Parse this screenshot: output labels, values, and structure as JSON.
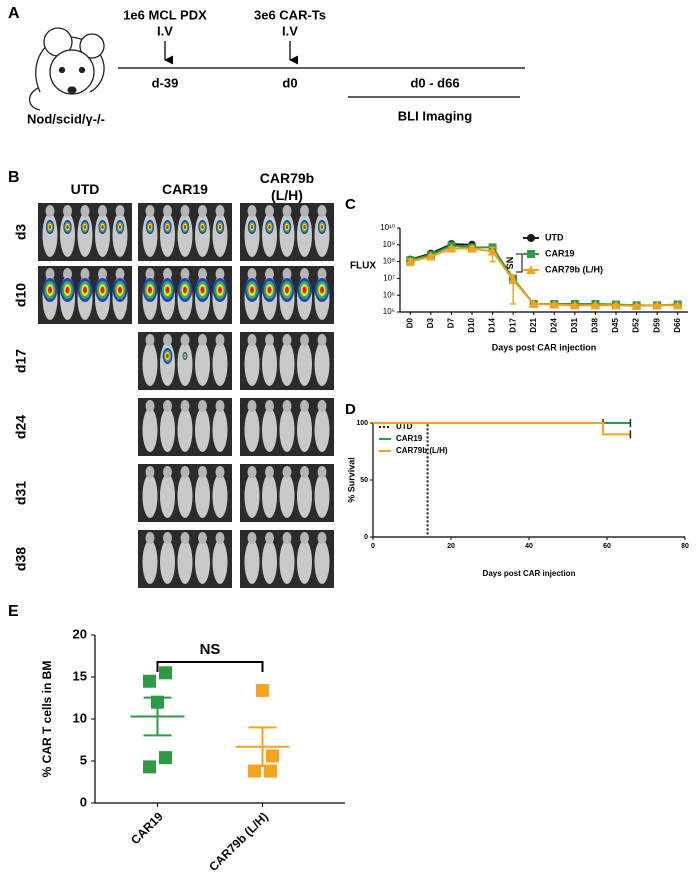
{
  "panel_a": {
    "label": "A",
    "strain": "Nod/scid/γ-/-",
    "events": [
      {
        "top": "1e6 MCL PDX",
        "route": "I.V",
        "day": "d-39"
      },
      {
        "top": "3e6 CAR-Ts",
        "route": "I.V",
        "day": "d0"
      }
    ],
    "imaging": {
      "range": "d0 - d66",
      "label": "BLI Imaging"
    }
  },
  "panel_b": {
    "label": "B",
    "columns": [
      "UTD",
      "CAR19",
      "CAR79b (L/H)"
    ],
    "rows": [
      "d3",
      "d10",
      "d17",
      "d24",
      "d31",
      "d38"
    ]
  },
  "chart_data": [
    {
      "type": "line",
      "panel": "C",
      "y_label": "FLUX",
      "x_label": "Days post CAR injection",
      "log_y": true,
      "ylim": [
        100000,
        10000000000
      ],
      "yticks": [
        {
          "value": 100000,
          "label": "10⁵"
        },
        {
          "value": 1000000,
          "label": "10⁶"
        },
        {
          "value": 10000000,
          "label": "10⁷"
        },
        {
          "value": 100000000,
          "label": "10⁸"
        },
        {
          "value": 1000000000,
          "label": "10⁹"
        },
        {
          "value": 10000000000,
          "label": "10¹⁰"
        }
      ],
      "categories": [
        "D0",
        "D3",
        "D7",
        "D10",
        "D14",
        "D17",
        "D21",
        "D24",
        "D31",
        "D38",
        "D45",
        "D52",
        "D59",
        "D66"
      ],
      "legend": "upper right",
      "annotation": "NS",
      "series": [
        {
          "name": "UTD",
          "color": "#1a1a1a",
          "marker": "circle",
          "values": [
            130000000,
            300000000,
            1100000000,
            1000000000,
            null,
            null,
            null,
            null,
            null,
            null,
            null,
            null,
            null,
            null
          ],
          "errors": [
            40000000,
            80000000,
            300000000,
            200000000,
            null,
            null,
            null,
            null,
            null,
            null,
            null,
            null,
            null,
            null
          ]
        },
        {
          "name": "CAR19",
          "color": "#2f9a45",
          "marker": "square",
          "values": [
            120000000,
            250000000,
            900000000,
            700000000,
            700000000,
            10000000,
            300000,
            300000,
            300000,
            300000,
            280000,
            250000,
            250000,
            280000
          ],
          "errors": [
            60000000,
            80000000,
            300000000,
            200000000,
            300000000,
            5000000,
            60000,
            50000,
            50000,
            50000,
            40000,
            40000,
            40000,
            50000
          ]
        },
        {
          "name": "CAR79b (L/H)",
          "color": "#f5a31a",
          "marker": "triangle",
          "values": [
            100000000,
            200000000,
            600000000,
            600000000,
            400000000,
            8000000,
            300000,
            280000,
            250000,
            250000,
            250000,
            230000,
            250000,
            250000
          ],
          "errors": [
            40000000,
            60000000,
            150000000,
            200000000,
            300000000,
            7700000,
            50000,
            40000,
            40000,
            40000,
            40000,
            40000,
            40000,
            40000
          ]
        }
      ]
    },
    {
      "type": "survival",
      "panel": "D",
      "y_label": "% Survival",
      "x_label": "Days post CAR injection",
      "xlim": [
        0,
        80
      ],
      "xticks": [
        0,
        20,
        40,
        60,
        80
      ],
      "ylim": [
        0,
        100
      ],
      "yticks": [
        0,
        50,
        100
      ],
      "legend": "upper left",
      "series": [
        {
          "name": "UTD",
          "color": "#1a1a1a",
          "dash": true,
          "x": [
            0,
            14,
            14
          ],
          "values": [
            100,
            100,
            0
          ]
        },
        {
          "name": "CAR19",
          "color": "#2f9a45",
          "x": [
            0,
            66
          ],
          "values": [
            100,
            100
          ],
          "censored": [
            59,
            66
          ]
        },
        {
          "name": "CAR79b (L/H)",
          "color": "#f5a31a",
          "x": [
            0,
            59,
            59,
            66
          ],
          "values": [
            100,
            100,
            90,
            90
          ],
          "censored": [
            66
          ]
        }
      ]
    },
    {
      "type": "dot",
      "panel": "E",
      "y_label": "% CAR T cells in BM",
      "ylim": [
        0,
        20
      ],
      "yticks": [
        0,
        5,
        10,
        15,
        20
      ],
      "categories": [
        "CAR19",
        "CAR79b (L/H)"
      ],
      "colors": [
        "#2f9a45",
        "#f5a31a"
      ],
      "values": [
        [
          15.5,
          14.5,
          12,
          5.4,
          4.3
        ],
        [
          13.4,
          5.6,
          3.8,
          3.8
        ]
      ],
      "means": [
        10.3,
        6.7
      ],
      "sems": [
        2.25,
        2.3
      ],
      "annotation": "NS"
    }
  ]
}
